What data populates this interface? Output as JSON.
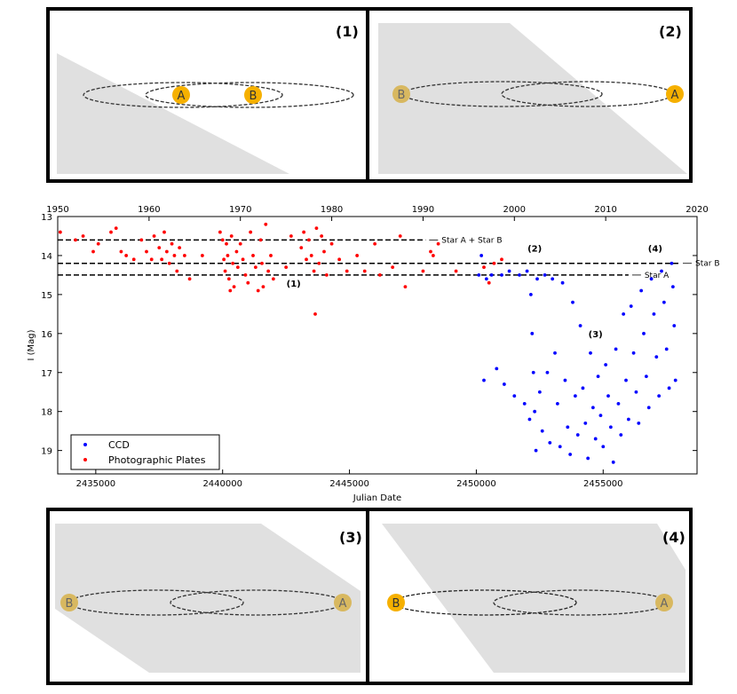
{
  "panels": [
    {
      "label": "(1)",
      "star_left": "A",
      "star_right": "B"
    },
    {
      "label": "(2)",
      "star_left": "B",
      "star_right": "A"
    },
    {
      "label": "(3)",
      "star_left": "B",
      "star_right": "A"
    },
    {
      "label": "(4)",
      "star_left": "B",
      "star_right": "A"
    }
  ],
  "colors": {
    "ccd": "#0000ff",
    "plates": "#ff0000",
    "star_bright": "#f6b000",
    "star_dim": "#d8b860",
    "shadow": "#e0e0e0"
  },
  "chart_data": {
    "type": "scatter",
    "title": "",
    "xlabel": "Julian Date",
    "ylabel": "I (Mag)",
    "xlim": [
      2433500,
      2458700
    ],
    "ylim": [
      13,
      19.6
    ],
    "y_inverted": true,
    "x_ticks": [
      2435000,
      2440000,
      2445000,
      2450000,
      2455000
    ],
    "x_tick_labels": [
      "2435000",
      "2440000",
      "2445000",
      "2450000",
      "2455000"
    ],
    "y_ticks": [
      13,
      14,
      15,
      16,
      17,
      18,
      19
    ],
    "y_tick_labels": [
      "13",
      "14",
      "15",
      "16",
      "17",
      "18",
      "19"
    ],
    "top_axis": {
      "ticks": [
        1950,
        1960,
        1970,
        1980,
        1990,
        2000,
        2010,
        2020
      ],
      "tick_labels": [
        "1950",
        "1960",
        "1970",
        "1980",
        "1990",
        "2000",
        "2010",
        "2020"
      ],
      "xlim": [
        1950,
        2020
      ]
    },
    "reference_lines": [
      {
        "y": 13.6,
        "x_end": 2448000,
        "label": "Star A + Star B"
      },
      {
        "y": 14.2,
        "x_end": 2458000,
        "label": "Star B"
      },
      {
        "y": 14.5,
        "x_end": 2456000,
        "label": "Star A"
      }
    ],
    "annotations": [
      {
        "text": "(1)",
        "x": 2442800,
        "y": 14.8
      },
      {
        "text": "(2)",
        "x": 2452300,
        "y": 13.9
      },
      {
        "text": "(3)",
        "x": 2454700,
        "y": 16.1
      },
      {
        "text": "(4)",
        "x": 2457050,
        "y": 13.9
      }
    ],
    "legend": {
      "position": "bottom-left",
      "entries": [
        "CCD",
        "Photographic Plates"
      ]
    },
    "series": [
      {
        "name": "Photographic Plates",
        "color": "#ff0000",
        "points": [
          [
            2433600,
            13.4
          ],
          [
            2434200,
            13.6
          ],
          [
            2434500,
            13.5
          ],
          [
            2434900,
            13.9
          ],
          [
            2435100,
            13.7
          ],
          [
            2435600,
            13.4
          ],
          [
            2435800,
            13.3
          ],
          [
            2436000,
            13.9
          ],
          [
            2436200,
            14.0
          ],
          [
            2436500,
            14.1
          ],
          [
            2436800,
            13.6
          ],
          [
            2437000,
            13.9
          ],
          [
            2437200,
            14.1
          ],
          [
            2437300,
            13.5
          ],
          [
            2437500,
            13.8
          ],
          [
            2437600,
            14.1
          ],
          [
            2437700,
            13.4
          ],
          [
            2437800,
            13.9
          ],
          [
            2437900,
            14.2
          ],
          [
            2438000,
            13.7
          ],
          [
            2438100,
            14.0
          ],
          [
            2438200,
            14.4
          ],
          [
            2438300,
            13.8
          ],
          [
            2438500,
            14.0
          ],
          [
            2438700,
            14.6
          ],
          [
            2439200,
            14.0
          ],
          [
            2439900,
            13.4
          ],
          [
            2440000,
            13.6
          ],
          [
            2440050,
            14.1
          ],
          [
            2440100,
            14.4
          ],
          [
            2440150,
            13.7
          ],
          [
            2440200,
            14.0
          ],
          [
            2440250,
            14.6
          ],
          [
            2440300,
            14.9
          ],
          [
            2440350,
            13.5
          ],
          [
            2440400,
            14.2
          ],
          [
            2440450,
            14.8
          ],
          [
            2440550,
            13.9
          ],
          [
            2440600,
            14.3
          ],
          [
            2440700,
            13.7
          ],
          [
            2440800,
            14.1
          ],
          [
            2440900,
            14.5
          ],
          [
            2441000,
            14.7
          ],
          [
            2441100,
            13.4
          ],
          [
            2441200,
            14.0
          ],
          [
            2441300,
            14.3
          ],
          [
            2441400,
            14.9
          ],
          [
            2441500,
            13.6
          ],
          [
            2441550,
            14.2
          ],
          [
            2441600,
            14.8
          ],
          [
            2441700,
            13.2
          ],
          [
            2441800,
            14.4
          ],
          [
            2441900,
            14.0
          ],
          [
            2442000,
            14.6
          ],
          [
            2442500,
            14.3
          ],
          [
            2442700,
            13.5
          ],
          [
            2443100,
            13.8
          ],
          [
            2443200,
            13.4
          ],
          [
            2443300,
            14.1
          ],
          [
            2443400,
            13.6
          ],
          [
            2443500,
            14.0
          ],
          [
            2443600,
            14.4
          ],
          [
            2443650,
            15.5
          ],
          [
            2443700,
            13.3
          ],
          [
            2443800,
            14.2
          ],
          [
            2443900,
            13.5
          ],
          [
            2444000,
            13.9
          ],
          [
            2444100,
            14.5
          ],
          [
            2444300,
            13.7
          ],
          [
            2444600,
            14.1
          ],
          [
            2444900,
            14.4
          ],
          [
            2445300,
            14.0
          ],
          [
            2445600,
            14.4
          ],
          [
            2446000,
            13.7
          ],
          [
            2446200,
            14.5
          ],
          [
            2446700,
            14.3
          ],
          [
            2447000,
            13.5
          ],
          [
            2447200,
            14.8
          ],
          [
            2447900,
            14.4
          ],
          [
            2448200,
            13.9
          ],
          [
            2448300,
            14.0
          ],
          [
            2448500,
            13.7
          ],
          [
            2449200,
            14.4
          ],
          [
            2450300,
            14.3
          ],
          [
            2450500,
            14.7
          ],
          [
            2450700,
            14.2
          ],
          [
            2451000,
            14.1
          ]
        ]
      },
      {
        "name": "CCD",
        "color": "#0000ff",
        "points": [
          [
            2450100,
            14.5
          ],
          [
            2450200,
            14.0
          ],
          [
            2450300,
            17.2
          ],
          [
            2450400,
            14.6
          ],
          [
            2450600,
            14.5
          ],
          [
            2450800,
            16.9
          ],
          [
            2451000,
            14.5
          ],
          [
            2451100,
            17.3
          ],
          [
            2451300,
            14.4
          ],
          [
            2451500,
            17.6
          ],
          [
            2451700,
            14.5
          ],
          [
            2451900,
            17.8
          ],
          [
            2452000,
            14.4
          ],
          [
            2452100,
            18.2
          ],
          [
            2452150,
            15.0
          ],
          [
            2452200,
            16.0
          ],
          [
            2452250,
            17.0
          ],
          [
            2452300,
            18.0
          ],
          [
            2452350,
            19.0
          ],
          [
            2452400,
            14.6
          ],
          [
            2452500,
            17.5
          ],
          [
            2452600,
            18.5
          ],
          [
            2452700,
            14.5
          ],
          [
            2452800,
            17.0
          ],
          [
            2452900,
            18.8
          ],
          [
            2453000,
            14.6
          ],
          [
            2453100,
            16.5
          ],
          [
            2453200,
            17.8
          ],
          [
            2453300,
            18.9
          ],
          [
            2453400,
            14.7
          ],
          [
            2453500,
            17.2
          ],
          [
            2453600,
            18.4
          ],
          [
            2453700,
            19.1
          ],
          [
            2453800,
            15.2
          ],
          [
            2453900,
            17.6
          ],
          [
            2454000,
            18.6
          ],
          [
            2454100,
            15.8
          ],
          [
            2454200,
            17.4
          ],
          [
            2454300,
            18.3
          ],
          [
            2454400,
            19.2
          ],
          [
            2454500,
            16.5
          ],
          [
            2454600,
            17.9
          ],
          [
            2454700,
            18.7
          ],
          [
            2454800,
            17.1
          ],
          [
            2454900,
            18.1
          ],
          [
            2455000,
            18.9
          ],
          [
            2455100,
            16.8
          ],
          [
            2455200,
            17.6
          ],
          [
            2455300,
            18.4
          ],
          [
            2455400,
            19.3
          ],
          [
            2455500,
            16.4
          ],
          [
            2455600,
            17.8
          ],
          [
            2455700,
            18.6
          ],
          [
            2455800,
            15.5
          ],
          [
            2455900,
            17.2
          ],
          [
            2456000,
            18.2
          ],
          [
            2456100,
            15.3
          ],
          [
            2456200,
            16.5
          ],
          [
            2456300,
            17.5
          ],
          [
            2456400,
            18.3
          ],
          [
            2456500,
            14.9
          ],
          [
            2456600,
            16.0
          ],
          [
            2456700,
            17.1
          ],
          [
            2456800,
            17.9
          ],
          [
            2456900,
            14.6
          ],
          [
            2457000,
            15.5
          ],
          [
            2457100,
            16.6
          ],
          [
            2457200,
            17.6
          ],
          [
            2457300,
            14.4
          ],
          [
            2457400,
            15.2
          ],
          [
            2457500,
            16.4
          ],
          [
            2457600,
            17.4
          ],
          [
            2457700,
            14.2
          ],
          [
            2457750,
            14.8
          ],
          [
            2457800,
            15.8
          ],
          [
            2457850,
            17.2
          ]
        ]
      }
    ]
  }
}
